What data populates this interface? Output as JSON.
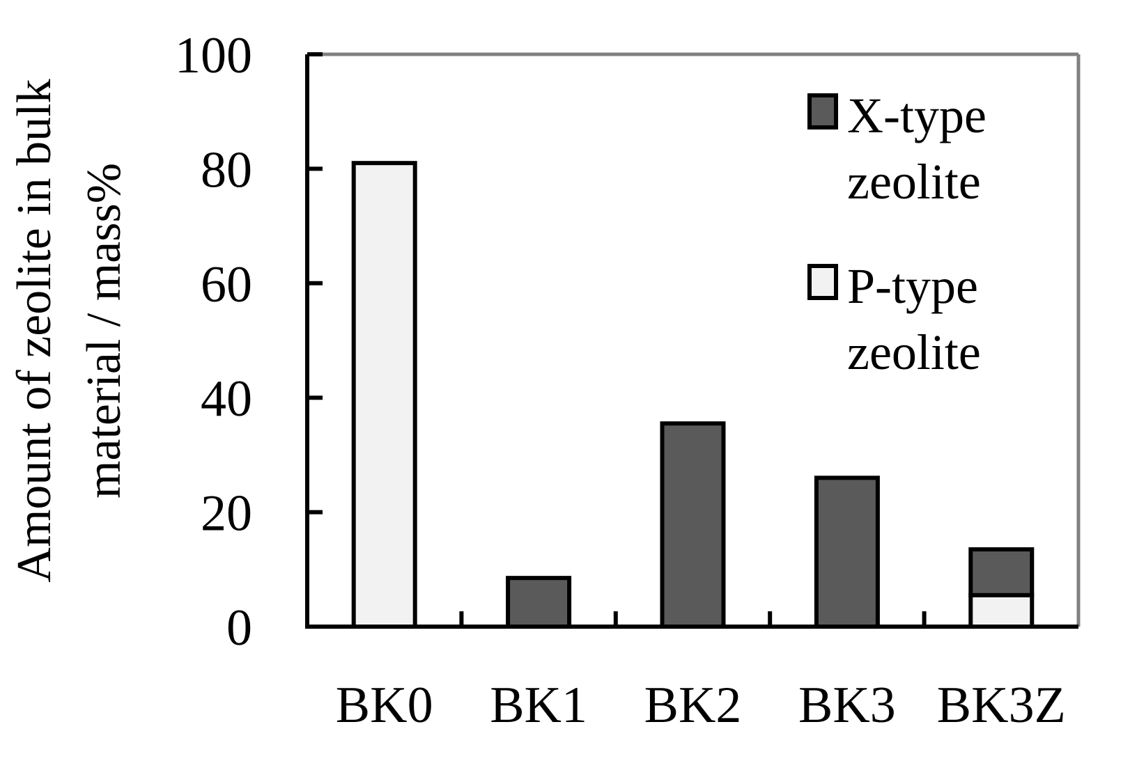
{
  "chart_data": {
    "type": "bar",
    "stacked": true,
    "categories": [
      "BK0",
      "BK1",
      "BK2",
      "BK3",
      "BK3Z"
    ],
    "series": [
      {
        "key": "p",
        "name_lines": [
          "P-type",
          "zeolite"
        ],
        "color": "#f2f2f2",
        "values": [
          81,
          0,
          0,
          0,
          5.5
        ]
      },
      {
        "key": "x",
        "name_lines": [
          "X-type",
          "zeolite"
        ],
        "color": "#5a5a5a",
        "values": [
          0,
          8.5,
          35.5,
          26,
          8
        ]
      }
    ],
    "ylabel_lines": [
      "Amount of zeolite in bulk",
      "material / mass%"
    ],
    "ylim": [
      0,
      100
    ],
    "yticks": [
      "0",
      "20",
      "40",
      "60",
      "80",
      "100"
    ],
    "legend_position": "top-right",
    "grid": false
  }
}
